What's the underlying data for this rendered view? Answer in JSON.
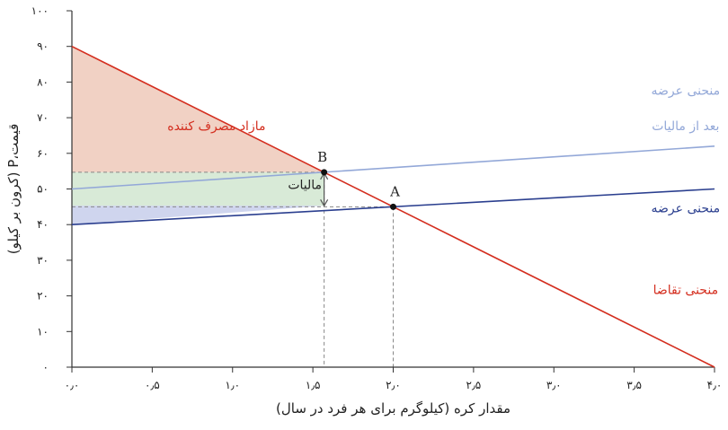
{
  "chart_data": {
    "type": "line",
    "xlabel": "مقدار کره (کیلوگرم برای هر فرد در سال)",
    "ylabel": "قیمت،P (کرون بر کیلو)",
    "xlim": [
      0,
      4
    ],
    "ylim": [
      0,
      100
    ],
    "x_ticks": [
      0,
      0.5,
      1,
      1.5,
      2,
      2.5,
      3,
      3.5,
      4
    ],
    "x_tick_labels": [
      "۰٫۰",
      "۰٫۵",
      "۱٫۰",
      "۱٫۵",
      "۲٫۰",
      "۲٫۵",
      "۳٫۰",
      "۳٫۵",
      "۴٫۰"
    ],
    "y_ticks": [
      0,
      10,
      20,
      30,
      40,
      50,
      60,
      70,
      80,
      90,
      100
    ],
    "y_tick_labels": [
      "۰",
      "۱۰",
      "۲۰",
      "۳۰",
      "۴۰",
      "۵۰",
      "۶۰",
      "۷۰",
      "۸۰",
      "۹۰",
      "۱۰۰"
    ],
    "series": [
      {
        "name": "منحنی تقاضا",
        "color": "#d42e1f",
        "points": [
          [
            0,
            90
          ],
          [
            4,
            0
          ]
        ]
      },
      {
        "name": "منحنی عرضه",
        "color": "#2b3f8f",
        "points": [
          [
            0,
            40
          ],
          [
            4,
            50
          ]
        ]
      },
      {
        "name": "منحنی عرضه بعد از مالیات",
        "color": "#93a8d8",
        "points": [
          [
            0,
            50
          ],
          [
            4,
            62
          ]
        ]
      }
    ],
    "points": [
      {
        "label": "A",
        "x": 2.0,
        "y": 45
      },
      {
        "label": "B",
        "x": 1.57,
        "y": 54.7
      }
    ],
    "regions": [
      {
        "name": "consumer_surplus",
        "color": "#f1d1c4",
        "polygon": [
          [
            0,
            90
          ],
          [
            1.57,
            54.7
          ],
          [
            0,
            54.7
          ]
        ]
      },
      {
        "name": "tax_revenue",
        "color": "#d8ead7",
        "polygon": [
          [
            0,
            54.7
          ],
          [
            1.57,
            54.7
          ],
          [
            1.57,
            45.3
          ],
          [
            0,
            45.3
          ]
        ]
      },
      {
        "name": "producer_surplus",
        "color": "#cfd5ee",
        "polygon": [
          [
            0,
            45.3
          ],
          [
            1.57,
            45.3
          ],
          [
            0,
            40
          ]
        ]
      }
    ],
    "annotations": [
      {
        "text": "مازاد مصرف کننده",
        "color": "#d42e1f",
        "x": 0.9,
        "y": 66.5
      },
      {
        "text": "مالیات",
        "color": "#222222",
        "x": 1.45,
        "y": 50
      },
      {
        "text": "منحنی عرضه",
        "color": "#93a8d8",
        "x": 3.82,
        "y": 76.5
      },
      {
        "text": "بعد از مالیات",
        "color": "#93a8d8",
        "x": 3.82,
        "y": 66.5
      },
      {
        "text": "منحنی عرضه",
        "color": "#2b3f8f",
        "x": 3.82,
        "y": 43.5
      },
      {
        "text": "منحنی تقاضا",
        "color": "#d42e1f",
        "x": 3.82,
        "y": 20.5
      }
    ],
    "grid": false,
    "colors": {
      "axis": "#333333",
      "dashed": "#888888",
      "point": "#111111"
    }
  }
}
